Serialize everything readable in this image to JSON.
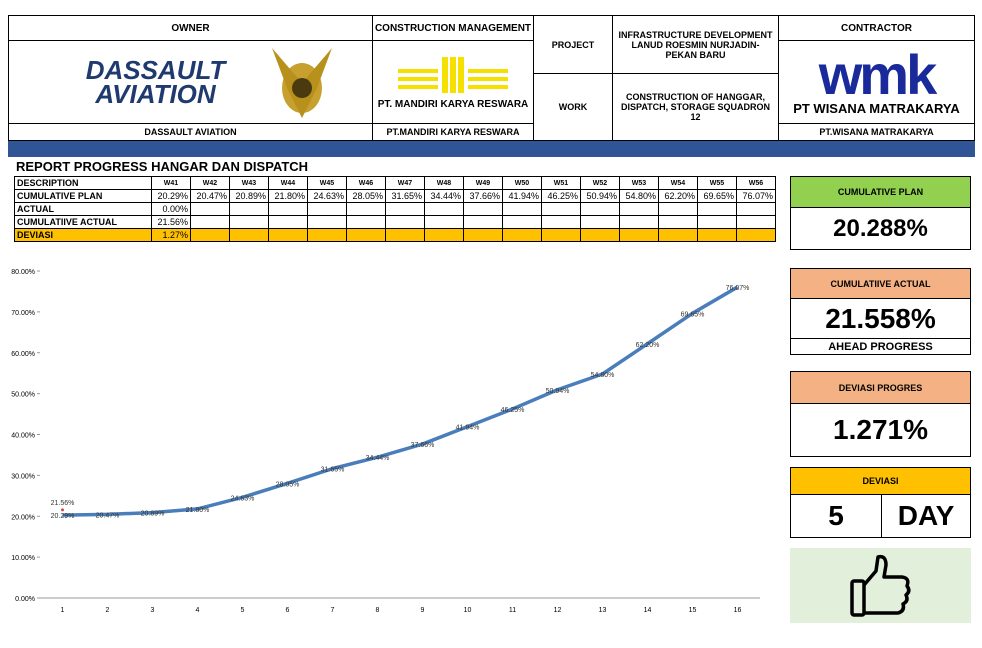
{
  "header": {
    "owner_title": "OWNER",
    "owner_logo": [
      "DASSAULT",
      "AVIATION"
    ],
    "owner_name": "DASSAULT AVIATION",
    "cm_title": "CONSTRUCTION MANAGEMENT",
    "cm_logo": "PT. MANDIRI KARYA RESWARA",
    "cm_name": "PT.MANDIRI KARYA RESWARA",
    "project_label": "PROJECT",
    "project_text": "INFRASTRUCTURE DEVELOPMENT LANUD ROESMIN NURJADIN-PEKAN BARU",
    "work_label": "WORK",
    "work_text": "CONSTRUCTION OF HANGGAR, DISPATCH, STORAGE SQUADRON 12",
    "contractor_title": "CONTRACTOR",
    "contractor_logo": "wmk",
    "contractor_logo_name": "PT WISANA MATRAKARYA",
    "contractor_name": "PT.WISANA MATRAKARYA"
  },
  "report_title": "REPORT PROGRESS HANGAR DAN DISPATCH",
  "table": {
    "header": [
      "DESCRIPTION",
      "W41",
      "W42",
      "W43",
      "W44",
      "W45",
      "W46",
      "W47",
      "W48",
      "W49",
      "W50",
      "W51",
      "W52",
      "W53",
      "W54",
      "W55",
      "W56"
    ],
    "rows": [
      [
        "CUMULATIVE PLAN",
        "20.29%",
        "20.47%",
        "20.89%",
        "21.80%",
        "24.63%",
        "28.05%",
        "31.65%",
        "34.44%",
        "37.66%",
        "41.94%",
        "46.25%",
        "50.94%",
        "54.80%",
        "62.20%",
        "69.65%",
        "76.07%"
      ],
      [
        "ACTUAL",
        "0.00%"
      ],
      [
        "CUMULATIIVE ACTUAL",
        "21.56%"
      ],
      [
        "DEVIASI",
        "1.27%"
      ]
    ]
  },
  "chart_data": {
    "type": "line",
    "categories": [
      1,
      2,
      3,
      4,
      5,
      6,
      7,
      8,
      9,
      10,
      11,
      12,
      13,
      14,
      15,
      16
    ],
    "series": [
      {
        "color": "#4a7ebb",
        "values": [
          20.29,
          20.47,
          20.89,
          21.8,
          24.63,
          28.05,
          31.65,
          34.44,
          37.66,
          41.94,
          46.25,
          50.94,
          54.8,
          62.2,
          69.65,
          76.07
        ],
        "value_labels": [
          "20.29%",
          "20.47%",
          "20.89%",
          "21.80%",
          "24.63%",
          "28.05%",
          "31.65%",
          "34.44%",
          "37.66%",
          "41.94%",
          "46.25%",
          "50.94%",
          "54.80%",
          "62.20%",
          "69.65%",
          "76.07%"
        ]
      },
      {
        "color": "#c0504d",
        "values": [
          21.56,
          null,
          null,
          null,
          null,
          null,
          null,
          null,
          null,
          null,
          null,
          null,
          null,
          null,
          null,
          null
        ],
        "value_labels": [
          "21.56%",
          null,
          null,
          null,
          null,
          null,
          null,
          null,
          null,
          null,
          null,
          null,
          null,
          null,
          null,
          null
        ]
      }
    ],
    "ylim": [
      0,
      80
    ],
    "yticks": [
      {
        "value": 0,
        "label": "0.00%"
      },
      {
        "value": 10,
        "label": "10.00%"
      },
      {
        "value": 20,
        "label": "20.00%"
      },
      {
        "value": 30,
        "label": "30.00%"
      },
      {
        "value": 40,
        "label": "40.00%"
      },
      {
        "value": 50,
        "label": "50.00%"
      },
      {
        "value": 60,
        "label": "60.00%"
      },
      {
        "value": 70,
        "label": "70.00%"
      },
      {
        "value": 80,
        "label": "80.00%"
      }
    ],
    "grid": false
  },
  "cards": {
    "plan_title": "CUMULATIVE PLAN",
    "plan_value": "20.288%",
    "actual_title": "CUMULATIIVE ACTUAL",
    "actual_value": "21.558%",
    "actual_note": "AHEAD PROGRESS",
    "dev_title": "DEVIASI PROGRES",
    "dev_value": "1.271%",
    "days_title": "DEVIASI",
    "days_value": "5",
    "days_unit": "DAY"
  }
}
